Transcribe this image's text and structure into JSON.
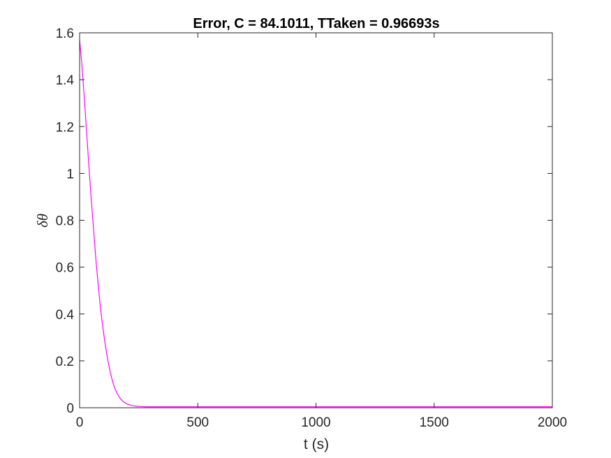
{
  "chart_data": {
    "type": "line",
    "title": "Error, C = 84.1011, TTaken = 0.96693s",
    "xlabel": "t (s)",
    "ylabel": "δθ",
    "xlim": [
      0,
      2000
    ],
    "ylim": [
      0,
      1.6
    ],
    "xticks": [
      0,
      500,
      1000,
      1500,
      2000
    ],
    "xtick_labels": [
      "0",
      "500",
      "1000",
      "1500",
      "2000"
    ],
    "yticks": [
      0,
      0.2,
      0.4,
      0.6,
      0.8,
      1.0,
      1.2,
      1.4,
      1.6
    ],
    "ytick_labels": [
      "0",
      "0.2",
      "0.4",
      "0.6",
      "0.8",
      "1",
      "1.2",
      "1.4",
      "1.6"
    ],
    "grid": false,
    "series": [
      {
        "color": "#ff00ff",
        "x": [
          0,
          10,
          20,
          30,
          40,
          50,
          60,
          70,
          80,
          90,
          100,
          110,
          120,
          130,
          140,
          150,
          160,
          170,
          180,
          190,
          200,
          215,
          230,
          245,
          260,
          280,
          300,
          350,
          400,
          500,
          700,
          1000,
          1500,
          2000
        ],
        "y": [
          1.57,
          1.46,
          1.32,
          1.17,
          1.02,
          0.88,
          0.75,
          0.62,
          0.51,
          0.41,
          0.33,
          0.26,
          0.2,
          0.15,
          0.11,
          0.08,
          0.058,
          0.042,
          0.03,
          0.022,
          0.016,
          0.011,
          0.008,
          0.006,
          0.005,
          0.004,
          0.004,
          0.004,
          0.004,
          0.004,
          0.004,
          0.004,
          0.004,
          0.004
        ]
      }
    ]
  }
}
